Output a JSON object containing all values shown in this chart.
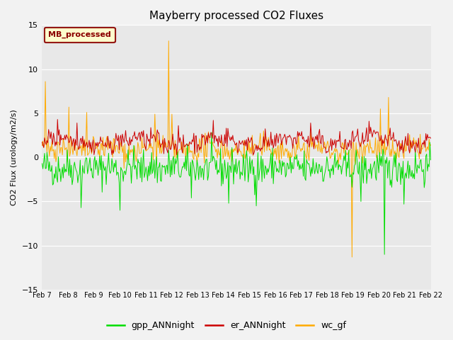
{
  "title": "Mayberry processed CO2 Fluxes",
  "ylabel": "CO2 Flux (urology/m2/s)",
  "ylim": [
    -15,
    15
  ],
  "yticks": [
    -15,
    -10,
    -5,
    0,
    5,
    10,
    15
  ],
  "xtick_labels": [
    "Feb 7",
    "Feb 8",
    "Feb 9",
    "Feb 10",
    "Feb 11",
    "Feb 12",
    "Feb 13",
    "Feb 14",
    "Feb 15",
    "Feb 16",
    "Feb 17",
    "Feb 18",
    "Feb 19",
    "Feb 20",
    "Feb 21",
    "Feb 22"
  ],
  "colors": {
    "gpp": "#00dd00",
    "er": "#cc0000",
    "wc": "#ffaa00"
  },
  "legend_label": "MB_processed",
  "legend_fg": "#8b0000",
  "legend_bg": "#ffffcc",
  "bg_outer": "#f0f0f0",
  "bg_inner": "#e8e8e8",
  "grid_color": "#ffffff",
  "n_points": 480,
  "seed": 42
}
